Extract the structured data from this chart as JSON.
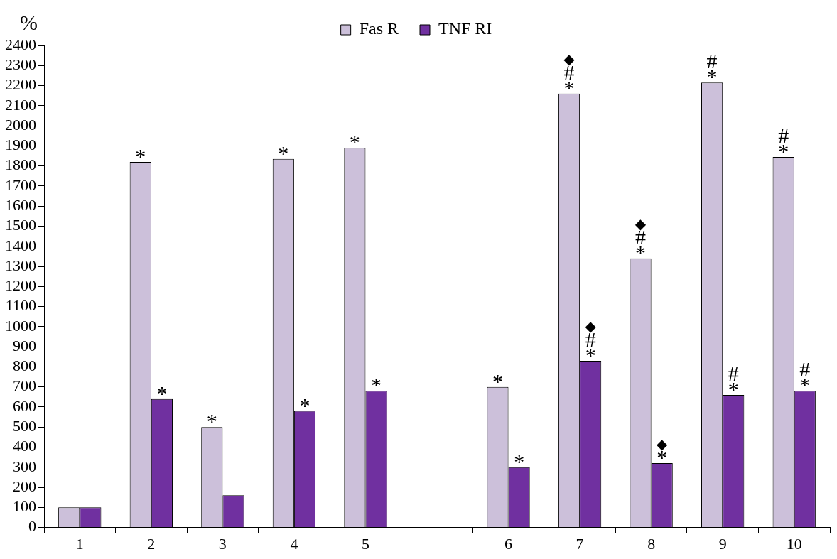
{
  "chart_data": {
    "type": "bar",
    "ylabel": "%",
    "categories": [
      "1",
      "2",
      "3",
      "4",
      "5",
      null,
      "6",
      "7",
      "8",
      "9",
      "10"
    ],
    "series": [
      {
        "name": "Fas R",
        "color": "#ccc0da",
        "values": [
          100,
          1820,
          500,
          1835,
          1890,
          null,
          700,
          2160,
          1340,
          2215,
          1845
        ]
      },
      {
        "name": "TNF RI",
        "color": "#7030a0",
        "values": [
          100,
          640,
          160,
          580,
          680,
          null,
          300,
          830,
          320,
          660,
          680
        ]
      }
    ],
    "ylim": [
      0,
      2400
    ],
    "yticks": [
      0,
      100,
      200,
      300,
      400,
      500,
      600,
      700,
      800,
      900,
      1000,
      1100,
      1200,
      1300,
      1400,
      1500,
      1600,
      1700,
      1800,
      1900,
      2000,
      2100,
      2200,
      2300,
      2400
    ],
    "grid": false,
    "legend": "top",
    "annotations": [
      {
        "text": "*",
        "x": "2",
        "y": 1820
      },
      {
        "text": "*",
        "x": "2",
        "y": 640
      },
      {
        "text": "*",
        "x": "3",
        "y": 500
      },
      {
        "text": "*",
        "x": "4",
        "y": 1835
      },
      {
        "text": "*",
        "x": "4",
        "y": 580
      },
      {
        "text": "*",
        "x": "5",
        "y": 1890
      },
      {
        "text": "*",
        "x": "5",
        "y": 680
      },
      {
        "text": "*",
        "x": "6",
        "y": 700
      },
      {
        "text": "*",
        "x": "6",
        "y": 300
      },
      {
        "text": "*",
        "x": "7",
        "y": 2160
      },
      {
        "text": "#",
        "x": "7",
        "y": 2160
      },
      {
        "text": "◆",
        "x": "7",
        "y": 2160
      },
      {
        "text": "*",
        "x": "7",
        "y": 830
      },
      {
        "text": "#",
        "x": "7",
        "y": 830
      },
      {
        "text": "◆",
        "x": "7",
        "y": 830
      },
      {
        "text": "*",
        "x": "8",
        "y": 1340
      },
      {
        "text": "#",
        "x": "8",
        "y": 1340
      },
      {
        "text": "◆",
        "x": "8",
        "y": 1340
      },
      {
        "text": "*",
        "x": "8",
        "y": 320
      },
      {
        "text": "◆",
        "x": "8",
        "y": 320
      },
      {
        "text": "*",
        "x": "9",
        "y": 2215
      },
      {
        "text": "#",
        "x": "9",
        "y": 2215
      },
      {
        "text": "*",
        "x": "9",
        "y": 660
      },
      {
        "text": "#",
        "x": "9",
        "y": 660
      },
      {
        "text": "*",
        "x": "10",
        "y": 1845
      },
      {
        "text": "#",
        "x": "10",
        "y": 1845
      },
      {
        "text": "*",
        "x": "10",
        "y": 680
      },
      {
        "text": "#",
        "x": "10",
        "y": 680
      }
    ]
  }
}
